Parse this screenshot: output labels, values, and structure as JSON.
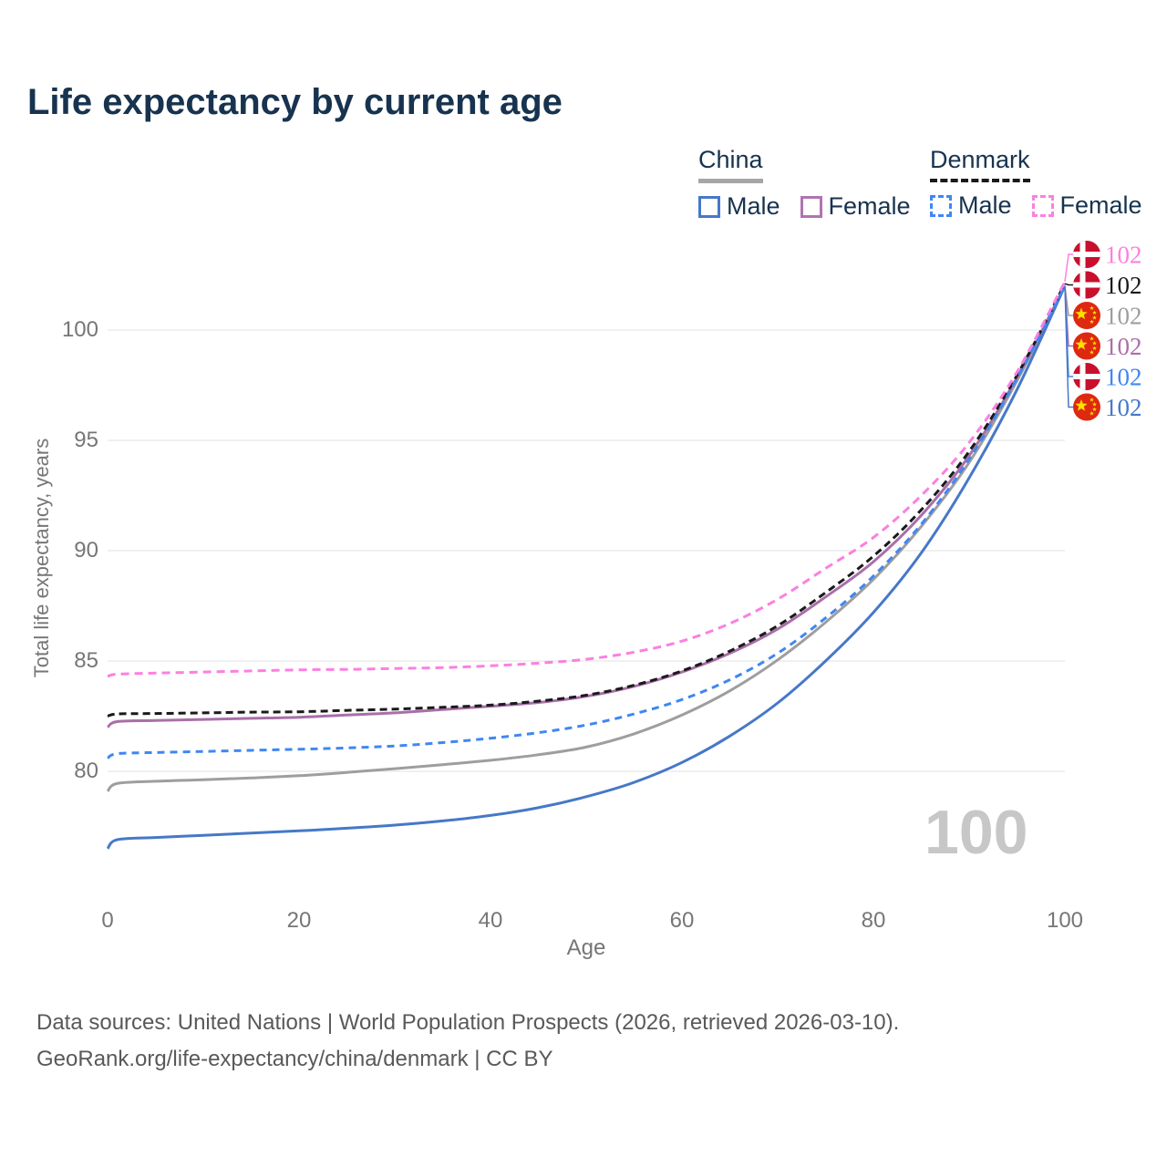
{
  "title": "Life expectancy by current age",
  "watermark": "100",
  "legend": {
    "groups": [
      {
        "label": "China",
        "underline_color": "#a6a6a6",
        "underline_style": "solid",
        "items": [
          {
            "label": "Male",
            "color": "#4678c8",
            "dashed": false
          },
          {
            "label": "Female",
            "color": "#b173b1",
            "dashed": false
          }
        ]
      },
      {
        "label": "Denmark",
        "underline_color": "#1a1a1a",
        "underline_style": "dashed",
        "items": [
          {
            "label": "Male",
            "color": "#3f87f2",
            "dashed": true
          },
          {
            "label": "Female",
            "color": "#fb80e0",
            "dashed": true
          }
        ]
      }
    ]
  },
  "chart_data": {
    "type": "line",
    "title": "Life expectancy by current age",
    "xlabel": "Age",
    "ylabel": "Total life expectancy, years",
    "xlim": [
      0,
      100
    ],
    "ylim": [
      76,
      103
    ],
    "x_ticks": [
      "0",
      "20",
      "40",
      "60",
      "80",
      "100"
    ],
    "y_ticks": [
      "80",
      "85",
      "90",
      "95",
      "100"
    ],
    "grid": "horizontal",
    "legend_position": "top-right",
    "series": [
      {
        "name": "Denmark Female",
        "country": "Denmark",
        "sex": "Female",
        "color": "#fb80e0",
        "dash": "9 6",
        "flag": "denmark",
        "end_label": "102",
        "points": [
          [
            0,
            84.3
          ],
          [
            1,
            84.4
          ],
          [
            5,
            84.45
          ],
          [
            10,
            84.5
          ],
          [
            15,
            84.55
          ],
          [
            20,
            84.6
          ],
          [
            25,
            84.62
          ],
          [
            30,
            84.66
          ],
          [
            35,
            84.7
          ],
          [
            40,
            84.78
          ],
          [
            45,
            84.9
          ],
          [
            50,
            85.08
          ],
          [
            55,
            85.4
          ],
          [
            60,
            85.9
          ],
          [
            65,
            86.7
          ],
          [
            70,
            87.8
          ],
          [
            75,
            89.2
          ],
          [
            80,
            90.6
          ],
          [
            85,
            92.5
          ],
          [
            90,
            94.9
          ],
          [
            95,
            98.1
          ],
          [
            100,
            102.2
          ]
        ]
      },
      {
        "name": "Denmark",
        "country": "Denmark",
        "sex": "Both",
        "color": "#1a1a1a",
        "dash": "8 5",
        "flag": "denmark",
        "end_label": "102",
        "points": [
          [
            0,
            82.5
          ],
          [
            1,
            82.6
          ],
          [
            5,
            82.62
          ],
          [
            10,
            82.65
          ],
          [
            15,
            82.68
          ],
          [
            20,
            82.7
          ],
          [
            25,
            82.76
          ],
          [
            30,
            82.82
          ],
          [
            35,
            82.9
          ],
          [
            40,
            83.0
          ],
          [
            45,
            83.18
          ],
          [
            50,
            83.45
          ],
          [
            55,
            83.9
          ],
          [
            60,
            84.55
          ],
          [
            65,
            85.45
          ],
          [
            70,
            86.6
          ],
          [
            75,
            88.1
          ],
          [
            80,
            89.75
          ],
          [
            85,
            91.85
          ],
          [
            90,
            94.5
          ],
          [
            95,
            97.95
          ],
          [
            100,
            102.1
          ]
        ]
      },
      {
        "name": "China",
        "country": "China",
        "sex": "Both",
        "color": "#9e9e9e",
        "dash": null,
        "flag": "china",
        "end_label": "102",
        "points": [
          [
            0,
            79.1
          ],
          [
            1,
            79.45
          ],
          [
            5,
            79.55
          ],
          [
            10,
            79.62
          ],
          [
            15,
            79.7
          ],
          [
            20,
            79.8
          ],
          [
            25,
            79.95
          ],
          [
            30,
            80.12
          ],
          [
            35,
            80.3
          ],
          [
            40,
            80.5
          ],
          [
            45,
            80.75
          ],
          [
            50,
            81.1
          ],
          [
            55,
            81.7
          ],
          [
            60,
            82.55
          ],
          [
            65,
            83.65
          ],
          [
            70,
            85.05
          ],
          [
            75,
            86.75
          ],
          [
            80,
            88.7
          ],
          [
            85,
            91.1
          ],
          [
            90,
            94.0
          ],
          [
            95,
            97.7
          ],
          [
            100,
            102
          ]
        ]
      },
      {
        "name": "China Female",
        "country": "China",
        "sex": "Female",
        "color": "#a96fa9",
        "dash": null,
        "flag": "china",
        "end_label": "102",
        "points": [
          [
            0,
            82.0
          ],
          [
            1,
            82.25
          ],
          [
            5,
            82.3
          ],
          [
            10,
            82.35
          ],
          [
            15,
            82.4
          ],
          [
            20,
            82.45
          ],
          [
            25,
            82.55
          ],
          [
            30,
            82.65
          ],
          [
            35,
            82.8
          ],
          [
            40,
            82.95
          ],
          [
            45,
            83.12
          ],
          [
            50,
            83.4
          ],
          [
            55,
            83.85
          ],
          [
            60,
            84.5
          ],
          [
            65,
            85.35
          ],
          [
            70,
            86.45
          ],
          [
            75,
            87.9
          ],
          [
            80,
            89.5
          ],
          [
            85,
            91.6
          ],
          [
            90,
            94.3
          ],
          [
            95,
            97.85
          ],
          [
            100,
            102
          ]
        ]
      },
      {
        "name": "Denmark Male",
        "country": "Denmark",
        "sex": "Male",
        "color": "#3f87f2",
        "dash": "8 6",
        "flag": "denmark",
        "end_label": "102",
        "points": [
          [
            0,
            80.6
          ],
          [
            1,
            80.8
          ],
          [
            5,
            80.85
          ],
          [
            10,
            80.9
          ],
          [
            15,
            80.95
          ],
          [
            20,
            81.0
          ],
          [
            25,
            81.06
          ],
          [
            30,
            81.15
          ],
          [
            35,
            81.3
          ],
          [
            40,
            81.5
          ],
          [
            45,
            81.75
          ],
          [
            50,
            82.1
          ],
          [
            55,
            82.6
          ],
          [
            60,
            83.25
          ],
          [
            65,
            84.15
          ],
          [
            70,
            85.35
          ],
          [
            75,
            86.95
          ],
          [
            80,
            88.85
          ],
          [
            85,
            91.2
          ],
          [
            90,
            94.15
          ],
          [
            95,
            97.8
          ],
          [
            100,
            102
          ]
        ]
      },
      {
        "name": "China Male",
        "country": "China",
        "sex": "Male",
        "color": "#4678c8",
        "dash": null,
        "flag": "china",
        "end_label": "102",
        "points": [
          [
            0,
            76.5
          ],
          [
            1,
            76.9
          ],
          [
            5,
            77.0
          ],
          [
            10,
            77.1
          ],
          [
            15,
            77.2
          ],
          [
            20,
            77.3
          ],
          [
            25,
            77.42
          ],
          [
            30,
            77.56
          ],
          [
            35,
            77.75
          ],
          [
            40,
            78.0
          ],
          [
            45,
            78.35
          ],
          [
            50,
            78.85
          ],
          [
            55,
            79.5
          ],
          [
            60,
            80.4
          ],
          [
            65,
            81.6
          ],
          [
            70,
            83.1
          ],
          [
            75,
            85.0
          ],
          [
            80,
            87.2
          ],
          [
            85,
            89.9
          ],
          [
            90,
            93.3
          ],
          [
            95,
            97.3
          ],
          [
            100,
            102
          ]
        ]
      }
    ],
    "colors": {
      "gridline": "#ececec",
      "axis_text": "#767676",
      "title_text": "#17334f",
      "denmark_flag_red": "#c8102e",
      "china_flag_red": "#de2910",
      "flag_star_yellow": "#ffde00",
      "watermark": "#c7c7c7"
    }
  },
  "footer": {
    "line1": "Data sources: United Nations | World Population Prospects (2026, retrieved 2026-03-10).",
    "line2": "GeoRank.org/life-expectancy/china/denmark | CC BY"
  }
}
